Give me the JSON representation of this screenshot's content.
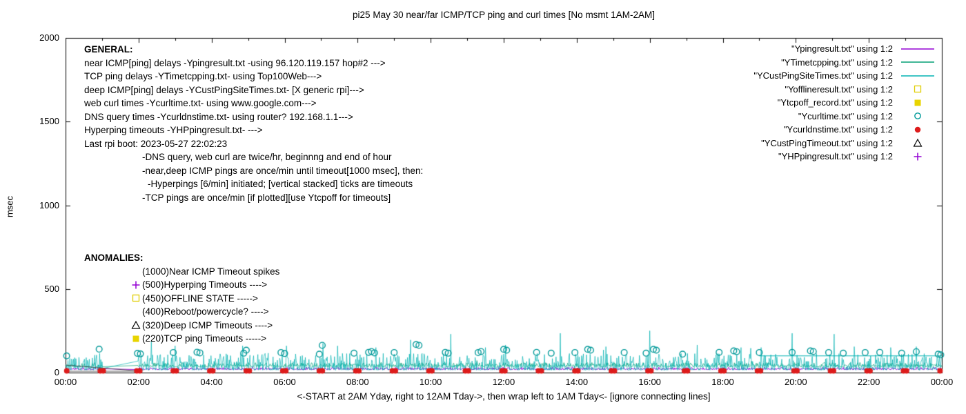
{
  "title": "pi25 May 30  near/far ICMP/TCP ping and curl times [No msmt 1AM-2AM]",
  "ylabel": "msec",
  "xlabel_note": "<-START at 2AM Yday, right to 12AM Tday->, then wrap left to 1AM Tday<- [ignore connecting lines]",
  "axes": {
    "y_ticks": [
      0,
      500,
      1000,
      1500,
      2000
    ],
    "x_tick_labels": [
      "00:00",
      "02:00",
      "04:00",
      "06:00",
      "08:00",
      "10:00",
      "12:00",
      "14:00",
      "16:00",
      "18:00",
      "20:00",
      "22:00",
      "00:00"
    ],
    "y_range_msec": [
      0,
      2000
    ],
    "x_range_hours": [
      0,
      24
    ]
  },
  "legend": [
    {
      "label": "\"Ypingresult.txt\" using 1:2",
      "glyph": "line",
      "color": "#9400d3"
    },
    {
      "label": "\"YTimetcpping.txt\" using 1:2",
      "glyph": "line",
      "color": "#009e73"
    },
    {
      "label": "\"YCustPingSiteTimes.txt\" using 1:2",
      "glyph": "line",
      "color": "#00b2b2"
    },
    {
      "label": "\"Yofflineresult.txt\" using 1:2",
      "glyph": "square-open",
      "color": "#e0cc00"
    },
    {
      "label": "\"Ytcpoff_record.txt\" using 1:2",
      "glyph": "square-filled",
      "color": "#e8d400"
    },
    {
      "label": "\"Ycurltime.txt\" using 1:2",
      "glyph": "circle-open",
      "color": "#009999"
    },
    {
      "label": "\"Ycurldnstime.txt\" using 1:2",
      "glyph": "circle-filled",
      "color": "#dd1c1c"
    },
    {
      "label": "\"YCustPingTimeout.txt\" using 1:2",
      "glyph": "triangle-open",
      "color": "#000000"
    },
    {
      "label": "\"YHPpingresult.txt\" using 1:2",
      "glyph": "plus",
      "color": "#9400d3"
    }
  ],
  "general": {
    "heading": "GENERAL:",
    "lines": [
      {
        "indent": 0,
        "text": "near ICMP[ping] delays -Ypingresult.txt -using 96.120.119.157 hop#2 --->"
      },
      {
        "indent": 0,
        "text": "TCP ping delays -YTimetcpping.txt- using Top100Web--->"
      },
      {
        "indent": 0,
        "text": "deep ICMP[ping] delays -YCustPingSiteTimes.txt- [X generic rpi]--->"
      },
      {
        "indent": 0,
        "text": "web curl times -Ycurltime.txt- using www.google.com--->"
      },
      {
        "indent": 0,
        "text": "DNS query times -Ycurldnstime.txt- using router? 192.168.1.1--->"
      },
      {
        "indent": 0,
        "text": "Hyperping timeouts -YHPpingresult.txt- --->"
      },
      {
        "indent": 0,
        "text": "Last rpi boot: 2023-05-27 22:02:23"
      },
      {
        "indent": 1,
        "text": "-DNS query, web curl are twice/hr, beginnng and end of hour"
      },
      {
        "indent": 1,
        "text": "-near,deep ICMP pings are once/min until timeout[1000 msec], then:"
      },
      {
        "indent": 2,
        "text": "-Hyperpings [6/min] initiated; [vertical stacked] ticks are timeouts"
      },
      {
        "indent": 1,
        "text": "-TCP pings are once/min [if plotted][use Ytcpoff for timeouts]"
      }
    ]
  },
  "anomalies": {
    "heading": "ANOMALIES:",
    "items": [
      {
        "marker": null,
        "color": null,
        "text": "(1000)Near ICMP Timeout spikes"
      },
      {
        "marker": "plus",
        "color": "#9400d3",
        "text": "(500)Hyperping Timeouts ---->"
      },
      {
        "marker": "square-open",
        "color": "#e0cc00",
        "text": "(450)OFFLINE STATE ----->"
      },
      {
        "marker": null,
        "color": null,
        "text": "(400)Reboot/powercycle? ---->"
      },
      {
        "marker": "triangle-open",
        "color": "#000000",
        "text": "(320)Deep ICMP Timeouts ---->"
      },
      {
        "marker": "square-filled",
        "color": "#e8d400",
        "text": "(220)TCP ping Timeouts ----->"
      }
    ]
  },
  "chart_data": {
    "type": "line",
    "title": "pi25 May 30  near/far ICMP/TCP ping and curl times [No msmt 1AM-2AM]",
    "xlabel": "<-START at 2AM Yday, right to 12AM Tday->, then wrap left to 1AM Tday<- [ignore connecting lines]",
    "ylabel": "msec",
    "x_unit": "hours",
    "xlim": [
      0,
      24
    ],
    "ylim": [
      0,
      2000
    ],
    "x_tick_labels": [
      "00:00",
      "02:00",
      "04:00",
      "06:00",
      "08:00",
      "10:00",
      "12:00",
      "14:00",
      "16:00",
      "18:00",
      "20:00",
      "22:00",
      "00:00"
    ],
    "no_measurement_gap_hours": [
      1,
      2
    ],
    "legend_position": "top-right",
    "grid": false,
    "series": [
      {
        "name": "Ypingresult.txt",
        "style": "line",
        "color": "#9400d3",
        "baseline_msec": 18,
        "noise_msec": 14,
        "seed": 11
      },
      {
        "name": "YTimetcpping.txt",
        "style": "line",
        "color": "#009e73",
        "baseline_msec": 35,
        "noise_msec": 25,
        "seed": 22
      },
      {
        "name": "YCustPingSiteTimes.txt",
        "style": "line",
        "color": "#00b2b2",
        "baseline_msec": 15,
        "noise_msec": 100,
        "seed": 33,
        "spikes": [
          [
            2.35,
            185
          ],
          [
            3.0,
            160
          ],
          [
            4.85,
            160
          ],
          [
            6.05,
            160
          ],
          [
            7.05,
            175
          ],
          [
            8.5,
            150
          ],
          [
            9.45,
            195
          ],
          [
            10.55,
            230
          ],
          [
            11.5,
            150
          ],
          [
            12.05,
            165
          ],
          [
            13.55,
            235
          ],
          [
            14.8,
            155
          ],
          [
            16.0,
            250
          ],
          [
            17.3,
            165
          ],
          [
            18.5,
            150
          ],
          [
            19.05,
            150
          ],
          [
            19.9,
            235
          ],
          [
            21.05,
            230
          ],
          [
            21.6,
            155
          ],
          [
            22.6,
            150
          ],
          [
            23.3,
            155
          ]
        ]
      },
      {
        "name": "Yofflineresult.txt",
        "style": "points",
        "marker": "square-open",
        "color": "#e0cc00",
        "points": []
      },
      {
        "name": "Ytcpoff_record.txt",
        "style": "points",
        "marker": "square-filled",
        "color": "#e8d400",
        "points": []
      },
      {
        "name": "Ycurltime.txt",
        "style": "points",
        "marker": "circle-open",
        "color": "#009999",
        "points": [
          [
            0.03,
            100
          ],
          [
            0.92,
            140
          ],
          [
            1.97,
            115
          ],
          [
            2.05,
            112
          ],
          [
            2.95,
            120
          ],
          [
            3.6,
            122
          ],
          [
            3.68,
            118
          ],
          [
            4.88,
            116
          ],
          [
            4.95,
            134
          ],
          [
            5.9,
            120
          ],
          [
            6.0,
            114
          ],
          [
            6.95,
            110
          ],
          [
            7.03,
            163
          ],
          [
            7.9,
            116
          ],
          [
            8.3,
            121
          ],
          [
            8.38,
            126
          ],
          [
            8.46,
            118
          ],
          [
            9.0,
            120
          ],
          [
            9.6,
            168
          ],
          [
            9.68,
            163
          ],
          [
            10.4,
            121
          ],
          [
            10.48,
            116
          ],
          [
            11.3,
            120
          ],
          [
            11.38,
            126
          ],
          [
            12.0,
            139
          ],
          [
            12.08,
            134
          ],
          [
            12.9,
            121
          ],
          [
            13.3,
            116
          ],
          [
            13.95,
            120
          ],
          [
            14.3,
            139
          ],
          [
            14.38,
            134
          ],
          [
            15.3,
            120
          ],
          [
            15.9,
            116
          ],
          [
            16.1,
            139
          ],
          [
            16.18,
            134
          ],
          [
            16.9,
            110
          ],
          [
            17.9,
            121
          ],
          [
            18.3,
            130
          ],
          [
            18.38,
            125
          ],
          [
            19.0,
            120
          ],
          [
            19.9,
            121
          ],
          [
            20.4,
            130
          ],
          [
            20.48,
            126
          ],
          [
            20.9,
            120
          ],
          [
            21.3,
            116
          ],
          [
            21.9,
            120
          ],
          [
            22.3,
            121
          ],
          [
            22.9,
            116
          ],
          [
            23.3,
            125
          ],
          [
            23.9,
            110
          ],
          [
            23.97,
            106
          ]
        ]
      },
      {
        "name": "Ycurldnstime.txt",
        "style": "points",
        "marker": "circle-filled",
        "color": "#dd1c1c",
        "pattern": {
          "from_hour": 0,
          "to_hour": 23,
          "minutes": [
            2,
            57
          ],
          "y_msec": 10
        }
      },
      {
        "name": "YCustPingTimeout.txt",
        "style": "points",
        "marker": "triangle-open",
        "color": "#000000",
        "points": []
      },
      {
        "name": "YHPpingresult.txt",
        "style": "points",
        "marker": "plus",
        "color": "#9400d3",
        "points": []
      }
    ],
    "extra_segments": [
      {
        "x1": 0,
        "y1": 45,
        "x2": 2.1,
        "y2": 8,
        "color": "#333333",
        "width": 0.8
      },
      {
        "x1": 0,
        "y1": 8,
        "x2": 2.1,
        "y2": 8,
        "color": "#333333",
        "width": 0.8
      },
      {
        "x1": 19.0,
        "y1": 100,
        "x2": 24,
        "y2": 100,
        "color": "#00b2b2",
        "width": 1
      }
    ]
  }
}
